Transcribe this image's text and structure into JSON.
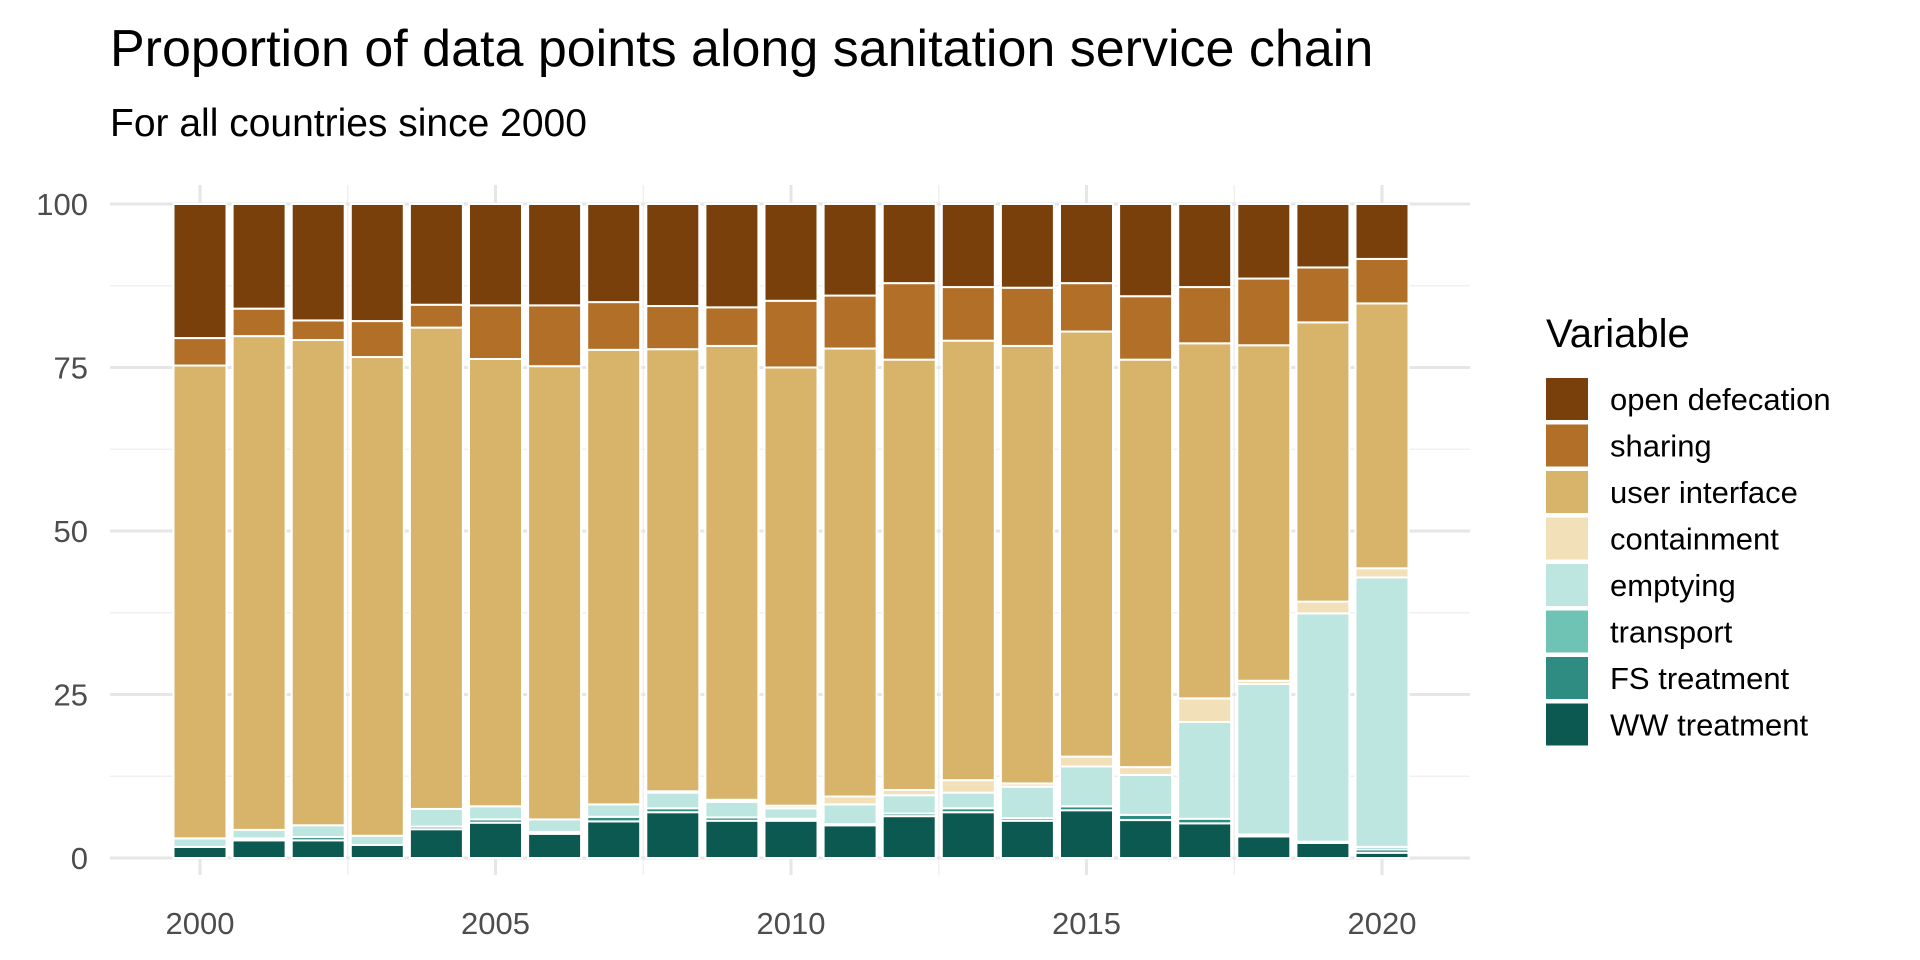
{
  "chart_data": {
    "type": "bar",
    "stacked": true,
    "title": "Proportion of data points along sanitation service chain",
    "subtitle": "For all countries since 2000",
    "xlabel": "",
    "ylabel": "",
    "ylim": [
      0,
      100
    ],
    "xlim": [
      1999,
      2021
    ],
    "x_ticks": [
      2000,
      2005,
      2010,
      2015,
      2020
    ],
    "y_ticks": [
      0,
      25,
      50,
      75,
      100
    ],
    "grid": true,
    "legend_title": "Variable",
    "legend_position": "right",
    "categories": [
      2000,
      2001,
      2002,
      2003,
      2004,
      2005,
      2006,
      2007,
      2008,
      2009,
      2010,
      2011,
      2012,
      2013,
      2014,
      2015,
      2016,
      2017,
      2018,
      2019,
      2020
    ],
    "series": [
      {
        "name": "WW treatment",
        "color": "#0b5950",
        "values": [
          1.7,
          2.7,
          2.7,
          2.0,
          4.4,
          5.4,
          3.7,
          5.6,
          7.0,
          5.7,
          5.7,
          5.0,
          6.4,
          7.0,
          5.7,
          7.3,
          5.8,
          5.3,
          3.3,
          2.3,
          0.8
        ]
      },
      {
        "name": "FS treatment",
        "color": "#2f8c82",
        "values": [
          0.0,
          0.3,
          0.5,
          0.0,
          0.4,
          0.5,
          0.3,
          0.7,
          0.6,
          0.5,
          0.3,
          0.2,
          0.4,
          0.6,
          0.4,
          0.6,
          0.8,
          0.7,
          0.3,
          0.2,
          0.5
        ]
      },
      {
        "name": "transport",
        "color": "#6fc3b4",
        "values": [
          0.0,
          0.0,
          0.0,
          0.0,
          0.0,
          0.0,
          0.0,
          0.0,
          0.0,
          0.0,
          0.0,
          0.0,
          0.0,
          0.0,
          0.0,
          0.0,
          0.0,
          0.0,
          0.0,
          0.0,
          0.4
        ]
      },
      {
        "name": "emptying",
        "color": "#bde6e1",
        "values": [
          1.3,
          1.3,
          1.8,
          1.4,
          2.7,
          2.0,
          1.9,
          1.9,
          2.4,
          2.4,
          1.6,
          3.0,
          2.8,
          2.4,
          4.8,
          6.1,
          6.1,
          14.8,
          23.0,
          34.9,
          41.2
        ]
      },
      {
        "name": "containment",
        "color": "#f2e0b8",
        "values": [
          0.0,
          0.0,
          0.0,
          0.0,
          0.0,
          0.0,
          0.0,
          0.0,
          0.2,
          0.3,
          0.4,
          1.2,
          0.8,
          1.9,
          0.5,
          1.5,
          1.2,
          3.6,
          0.5,
          1.8,
          1.4
        ]
      },
      {
        "name": "user interface",
        "color": "#d7b46a",
        "values": [
          72.3,
          75.5,
          74.2,
          73.2,
          73.6,
          68.4,
          69.3,
          69.5,
          67.6,
          69.4,
          67.0,
          68.5,
          65.8,
          67.2,
          66.9,
          65.0,
          62.3,
          54.3,
          51.3,
          42.7,
          40.5
        ]
      },
      {
        "name": "sharing",
        "color": "#b16f27",
        "values": [
          4.2,
          4.2,
          3.0,
          5.5,
          3.5,
          8.2,
          9.3,
          7.3,
          6.6,
          5.9,
          10.2,
          8.1,
          11.7,
          8.2,
          8.9,
          7.4,
          9.7,
          8.6,
          10.2,
          8.4,
          6.8
        ]
      },
      {
        "name": "open defecation",
        "color": "#7a400b",
        "values": [
          20.5,
          16.0,
          17.8,
          17.9,
          15.4,
          15.5,
          15.5,
          15.0,
          15.6,
          15.8,
          14.8,
          14.0,
          12.1,
          12.7,
          12.8,
          12.1,
          14.1,
          12.7,
          11.4,
          9.7,
          8.4
        ]
      }
    ]
  }
}
